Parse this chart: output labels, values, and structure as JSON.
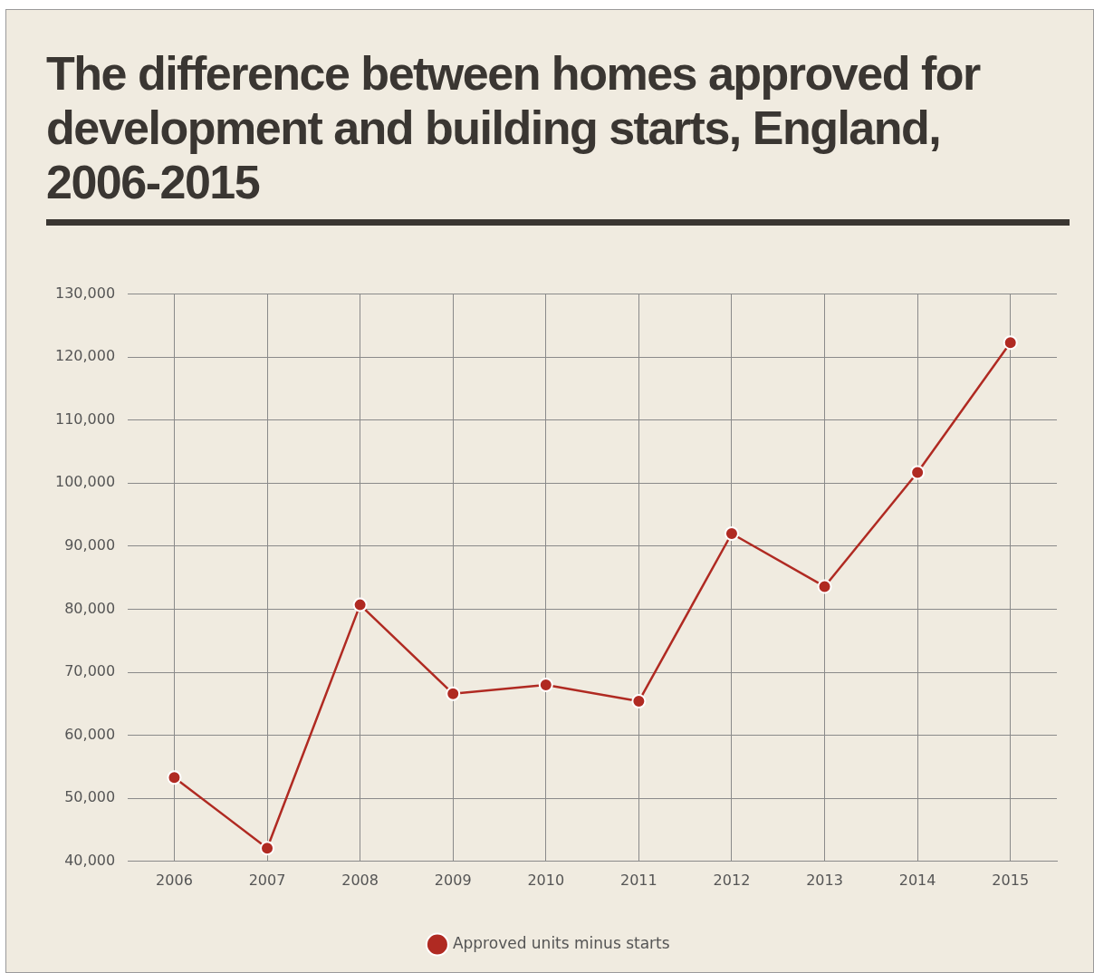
{
  "chart_data": {
    "type": "line",
    "title": "The difference between homes approved for development and building starts, England, 2006-2015",
    "categories": [
      "2006",
      "2007",
      "2008",
      "2009",
      "2010",
      "2011",
      "2012",
      "2013",
      "2014",
      "2015"
    ],
    "series": [
      {
        "name": "Approved units minus starts",
        "color": "#b02a22",
        "values": [
          53300,
          42100,
          80700,
          66600,
          68000,
          65400,
          92000,
          83600,
          101700,
          122300
        ]
      }
    ],
    "ylim": [
      40000,
      130000
    ],
    "yticks": [
      {
        "value": 40000,
        "label": "40,000"
      },
      {
        "value": 50000,
        "label": "50,000"
      },
      {
        "value": 60000,
        "label": "60,000"
      },
      {
        "value": 70000,
        "label": "70,000"
      },
      {
        "value": 80000,
        "label": "80,000"
      },
      {
        "value": 90000,
        "label": "90,000"
      },
      {
        "value": 100000,
        "label": "100,000"
      },
      {
        "value": 110000,
        "label": "110,000"
      },
      {
        "value": 120000,
        "label": "120,000"
      },
      {
        "value": 130000,
        "label": "130,000"
      }
    ],
    "grid": true,
    "legend": "bottom",
    "marker": "circle",
    "line_style": "solid"
  }
}
